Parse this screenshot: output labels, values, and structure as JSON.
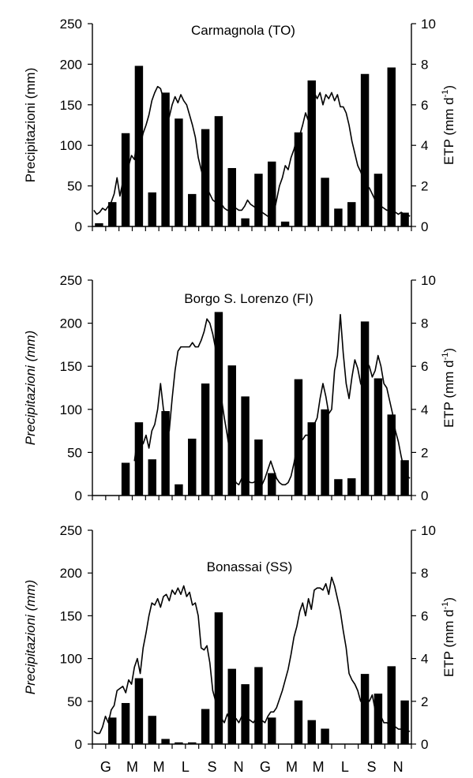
{
  "chart_data": [
    {
      "type": "bar+line",
      "title": "Carmagnola (TO)",
      "ylabel": "Precipitazioni (mm)",
      "y2label_main": "ETP (mm d",
      "y2label_sup": "-1",
      "y2label_end": ")",
      "ylim": [
        0,
        250
      ],
      "y2lim": [
        0,
        10
      ],
      "yticks": [
        "0",
        "50",
        "100",
        "150",
        "200",
        "250"
      ],
      "y2ticks": [
        "0",
        "2",
        "4",
        "6",
        "8",
        "10"
      ],
      "precip": [
        4,
        30,
        115,
        198,
        42,
        165,
        133,
        40,
        120,
        136,
        72,
        10,
        65,
        80,
        6,
        116,
        180,
        60,
        22,
        30,
        188,
        65,
        196,
        17
      ],
      "etp": [
        0.8,
        0.6,
        0.7,
        0.9,
        0.8,
        1.0,
        1.2,
        1.6,
        2.4,
        1.5,
        2.2,
        1.9,
        3.0,
        3.5,
        3.3,
        4.4,
        4.0,
        4.6,
        5.0,
        5.5,
        6.2,
        6.6,
        6.9,
        6.8,
        6.3,
        6.0,
        5.4,
        6.0,
        6.4,
        6.1,
        6.5,
        6.2,
        6.0,
        5.5,
        5.0,
        4.4,
        3.4,
        2.8,
        2.3,
        1.9,
        1.6,
        1.3,
        1.2,
        1.0,
        1.1,
        0.9,
        0.8,
        0.8,
        1.0,
        0.9,
        0.8,
        0.8,
        1.0,
        1.3,
        1.1,
        1.0,
        0.9,
        0.8,
        0.7,
        0.6,
        0.5,
        0.5,
        0.6,
        1.3,
        2.0,
        2.4,
        3.0,
        2.8,
        3.4,
        3.8,
        4.3,
        4.5,
        5.0,
        5.6,
        5.2,
        6.0,
        6.6,
        6.3,
        6.6,
        6.0,
        6.5,
        6.3,
        6.6,
        6.2,
        6.5,
        5.9,
        5.9,
        5.6,
        5.0,
        4.2,
        3.6,
        3.0,
        2.7,
        2.3,
        2.0,
        1.9,
        1.6,
        1.3,
        1.1,
        1.0,
        0.9,
        0.8,
        0.8,
        0.7,
        0.7,
        0.6,
        0.7,
        0.6,
        0.6,
        0.5
      ]
    },
    {
      "type": "bar+line",
      "title": "Borgo S. Lorenzo (FI)",
      "ylabel": "Precipitazioni (mm)",
      "y2label_main": "ETP (mm d",
      "y2label_sup": "-1",
      "y2label_end": ")",
      "ylim": [
        0,
        250
      ],
      "y2lim": [
        0,
        10
      ],
      "yticks": [
        "0",
        "50",
        "100",
        "150",
        "200",
        "250"
      ],
      "y2ticks": [
        "0",
        "2",
        "4",
        "6",
        "8",
        "10"
      ],
      "precip": [
        0,
        0,
        38,
        85,
        42,
        98,
        13,
        66,
        130,
        213,
        151,
        115,
        65,
        26,
        0,
        135,
        85,
        100,
        19,
        20,
        202,
        136,
        94,
        41
      ],
      "etp": [
        null,
        null,
        null,
        null,
        null,
        null,
        null,
        null,
        null,
        null,
        null,
        null,
        null,
        null,
        1.6,
        2.6,
        2.8,
        2.4,
        2.8,
        2.2,
        3.0,
        3.3,
        4.0,
        5.2,
        4.0,
        3.5,
        3.0,
        4.5,
        5.8,
        6.7,
        6.9,
        6.9,
        6.9,
        6.9,
        7.1,
        6.9,
        6.9,
        7.2,
        7.6,
        8.2,
        8.0,
        7.5,
        6.8,
        5.5,
        4.5,
        3.6,
        2.8,
        1.9,
        1.1,
        0.6,
        0.5,
        0.8,
        1.0,
        0.7,
        0.6,
        0.6,
        0.7,
        0.6,
        0.5,
        0.8,
        1.2,
        1.6,
        1.2,
        0.8,
        0.6,
        0.5,
        0.5,
        0.6,
        0.9,
        1.5,
        2.2,
        2.6,
        2.6,
        2.8,
        2.8,
        3.0,
        3.3,
        3.6,
        4.5,
        5.2,
        4.6,
        3.8,
        4.0,
        5.8,
        6.5,
        8.4,
        6.6,
        5.2,
        4.5,
        5.5,
        6.3,
        5.9,
        5.2,
        4.9,
        6.2,
        6.0,
        5.5,
        5.8,
        6.5,
        6.0,
        5.2,
        5.0,
        4.4,
        3.8,
        3.0,
        2.5,
        1.8,
        1.2,
        0.9,
        0.8
      ]
    },
    {
      "type": "bar+line",
      "title": "Bonassai (SS)",
      "ylabel": "Precipitazioni (mm)",
      "y2label_main": "ETP (mm d",
      "y2label_sup": "-1",
      "y2label_end": ")",
      "ylim": [
        0,
        250
      ],
      "y2lim": [
        0,
        10
      ],
      "yticks": [
        "0",
        "50",
        "100",
        "150",
        "200",
        "250"
      ],
      "y2ticks": [
        "0",
        "2",
        "4",
        "6",
        "8",
        "10"
      ],
      "precip": [
        0,
        31,
        48,
        77,
        33,
        6,
        2,
        2,
        41,
        154,
        88,
        70,
        90,
        31,
        0,
        51,
        28,
        18,
        0,
        0,
        82,
        59,
        91,
        51
      ],
      "etp": [
        0.6,
        0.5,
        0.5,
        0.8,
        1.3,
        1.0,
        1.6,
        1.8,
        2.5,
        2.6,
        2.7,
        2.4,
        3.0,
        2.8,
        3.6,
        4.0,
        3.3,
        4.5,
        5.2,
        6.0,
        6.6,
        6.5,
        6.8,
        6.4,
        6.9,
        7.0,
        6.7,
        7.2,
        7.0,
        7.3,
        7.0,
        7.4,
        6.9,
        7.1,
        6.5,
        6.6,
        6.0,
        4.5,
        4.4,
        4.6,
        3.8,
        2.5,
        2.0,
        1.5,
        1.2,
        1.0,
        1.4,
        1.1,
        1.0,
        1.2,
        1.0,
        1.3,
        1.5,
        1.2,
        1.1,
        1.0,
        1.2,
        1.3,
        1.1,
        1.0,
        1.3,
        1.5,
        1.5,
        1.7,
        2.1,
        2.5,
        3.0,
        3.5,
        4.2,
        5.0,
        5.5,
        6.2,
        6.6,
        6.0,
        6.8,
        6.3,
        7.2,
        7.3,
        7.3,
        7.2,
        7.5,
        7.0,
        7.8,
        7.4,
        6.8,
        6.2,
        5.3,
        4.5,
        3.3,
        3.0,
        2.8,
        2.5,
        2.0,
        2.4,
        2.2,
        2.0,
        2.3,
        1.6,
        1.5,
        1.3,
        1.0,
        1.0,
        0.9,
        0.8,
        0.8,
        0.7,
        0.7,
        0.6,
        0.6,
        0.6
      ]
    }
  ],
  "x_month_labels": [
    "G",
    "M",
    "M",
    "L",
    "S",
    "N",
    "G",
    "M",
    "M",
    "L",
    "S",
    "N"
  ]
}
